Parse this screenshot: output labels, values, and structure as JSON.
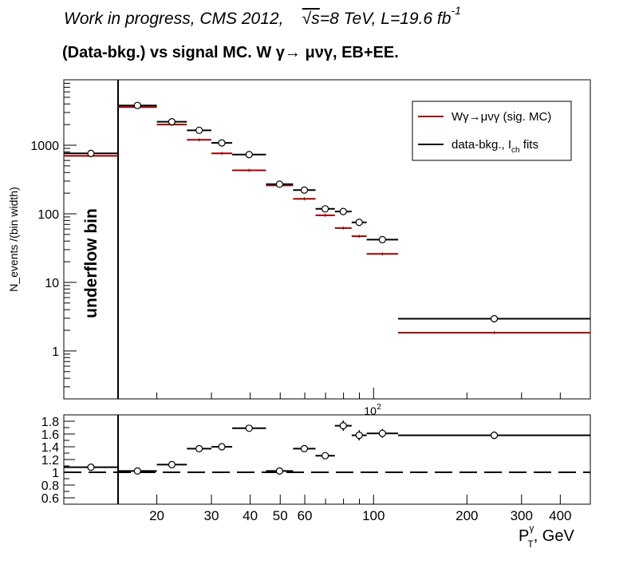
{
  "header": {
    "line1_a": "Work in progress, CMS 2012,",
    "line1_sqrt": "√s",
    "line1_b": "=8 TeV, L=19.6 fb",
    "line1_sup": "-1",
    "line2": "(Data-bkg.) vs signal MC.      W  γ→  μνγ, EB+EE."
  },
  "chart_data": [
    {
      "type": "scatter",
      "yscale": "log",
      "xscale": "log",
      "ylim": [
        0.2,
        9000
      ],
      "ylabel": "N_events /(bin width)",
      "yticks": [
        {
          "v": 1,
          "label": "1"
        },
        {
          "v": 10,
          "label": "10"
        },
        {
          "v": 100,
          "label": "100"
        },
        {
          "v": 1000,
          "label": "1000"
        }
      ],
      "x_exponent_label": "10",
      "x_exponent_sup": "2",
      "annotation": "underflow bin",
      "legend": {
        "placement": "top-right",
        "entries": [
          {
            "label": "Wγ→μνγ (sig. MC)",
            "color": "#a00000"
          },
          {
            "label_a": "data-bkg., I",
            "label_sub": "ch",
            "label_b": " fits",
            "color": "#000000"
          }
        ]
      },
      "series": [
        {
          "name": "Wγ→μνγ (sig. MC)",
          "color": "#a00000",
          "points": [
            {
              "xlo": 10,
              "xhi": 15,
              "y": 700
            },
            {
              "xlo": 15,
              "xhi": 20,
              "y": 3600
            },
            {
              "xlo": 20,
              "xhi": 25,
              "y": 2000
            },
            {
              "xlo": 25,
              "xhi": 30,
              "y": 1200
            },
            {
              "xlo": 30,
              "xhi": 35,
              "y": 760
            },
            {
              "xlo": 35,
              "xhi": 45,
              "y": 430
            },
            {
              "xlo": 45,
              "xhi": 55,
              "y": 260
            },
            {
              "xlo": 55,
              "xhi": 65,
              "y": 165
            },
            {
              "xlo": 65,
              "xhi": 75,
              "y": 95
            },
            {
              "xlo": 75,
              "xhi": 85,
              "y": 62
            },
            {
              "xlo": 85,
              "xhi": 95,
              "y": 47
            },
            {
              "xlo": 95,
              "xhi": 120,
              "y": 26
            },
            {
              "xlo": 120,
              "xhi": 500,
              "y": 1.85
            }
          ]
        },
        {
          "name": "data-bkg., I ch fits",
          "color": "#000000",
          "points": [
            {
              "xlo": 10,
              "xhi": 15,
              "y": 760
            },
            {
              "xlo": 15,
              "xhi": 20,
              "y": 3800
            },
            {
              "xlo": 20,
              "xhi": 25,
              "y": 2200
            },
            {
              "xlo": 25,
              "xhi": 30,
              "y": 1650
            },
            {
              "xlo": 30,
              "xhi": 35,
              "y": 1080
            },
            {
              "xlo": 35,
              "xhi": 45,
              "y": 730
            },
            {
              "xlo": 45,
              "xhi": 55,
              "y": 270
            },
            {
              "xlo": 55,
              "xhi": 65,
              "y": 222
            },
            {
              "xlo": 65,
              "xhi": 75,
              "y": 118
            },
            {
              "xlo": 75,
              "xhi": 85,
              "y": 108
            },
            {
              "xlo": 85,
              "xhi": 95,
              "y": 75
            },
            {
              "xlo": 95,
              "xhi": 120,
              "y": 42
            },
            {
              "xlo": 120,
              "xhi": 500,
              "y": 2.95
            }
          ]
        }
      ]
    },
    {
      "type": "scatter",
      "ylim": [
        0.5,
        1.9
      ],
      "yticks": [
        {
          "v": 0.6,
          "label": "0.6"
        },
        {
          "v": 0.8,
          "label": "0.8"
        },
        {
          "v": 1.0,
          "label": "1"
        },
        {
          "v": 1.2,
          "label": "1.2"
        },
        {
          "v": 1.4,
          "label": "1.4"
        },
        {
          "v": 1.6,
          "label": "1.6"
        },
        {
          "v": 1.8,
          "label": "1.8"
        }
      ],
      "xticks": [
        {
          "v": 20,
          "label": "20"
        },
        {
          "v": 30,
          "label": "30"
        },
        {
          "v": 40,
          "label": "40"
        },
        {
          "v": 50,
          "label": "50"
        },
        {
          "v": 60,
          "label": "60"
        },
        {
          "v": 100,
          "label": "100"
        },
        {
          "v": 200,
          "label": "200"
        },
        {
          "v": 300,
          "label": "300"
        },
        {
          "v": 400,
          "label": "400"
        }
      ],
      "xlabel_a": "P",
      "xlabel_sup": "γ",
      "xlabel_sub": "T",
      "xlabel_b": ", GeV",
      "reference_line": 1.0,
      "series": [
        {
          "name": "ratio",
          "color": "#000000",
          "points": [
            {
              "xlo": 10,
              "xhi": 15,
              "y": 1.08,
              "err": 0.02
            },
            {
              "xlo": 15,
              "xhi": 20,
              "y": 1.02,
              "err": 0.02
            },
            {
              "xlo": 20,
              "xhi": 25,
              "y": 1.12,
              "err": 0.02
            },
            {
              "xlo": 25,
              "xhi": 30,
              "y": 1.37,
              "err": 0.03
            },
            {
              "xlo": 30,
              "xhi": 35,
              "y": 1.4,
              "err": 0.03
            },
            {
              "xlo": 35,
              "xhi": 45,
              "y": 1.69,
              "err": 0.03
            },
            {
              "xlo": 45,
              "xhi": 55,
              "y": 1.02,
              "err": 0.03
            },
            {
              "xlo": 55,
              "xhi": 65,
              "y": 1.37,
              "err": 0.04
            },
            {
              "xlo": 65,
              "xhi": 75,
              "y": 1.26,
              "err": 0.05
            },
            {
              "xlo": 75,
              "xhi": 85,
              "y": 1.73,
              "err": 0.08
            },
            {
              "xlo": 85,
              "xhi": 95,
              "y": 1.58,
              "err": 0.08
            },
            {
              "xlo": 95,
              "xhi": 120,
              "y": 1.61,
              "err": 0.07
            },
            {
              "xlo": 120,
              "xhi": 500,
              "y": 1.58,
              "err": 0.06
            }
          ]
        }
      ]
    }
  ]
}
